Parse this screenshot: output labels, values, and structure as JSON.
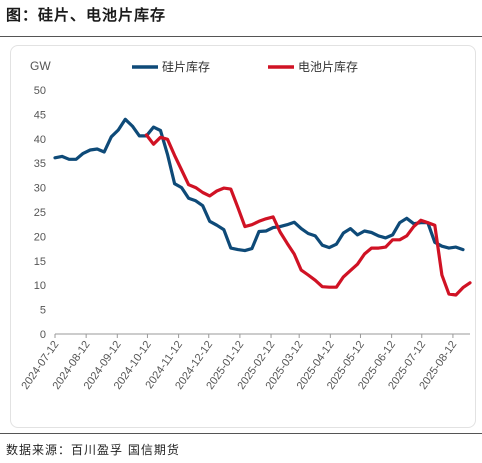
{
  "header": {
    "title": "图：硅片、电池片库存"
  },
  "footer": {
    "source": "数据来源：百川盈孚 国信期货"
  },
  "chart_data": {
    "type": "line",
    "ylabel": "GW",
    "ylim": [
      0,
      50
    ],
    "yticks": [
      0,
      5,
      10,
      15,
      20,
      25,
      30,
      35,
      40,
      45,
      50
    ],
    "x_start": "2024-07-12",
    "x_step_days": 7,
    "xticks": [
      "2024-07-12",
      "2024-08-12",
      "2024-09-12",
      "2024-10-12",
      "2024-11-12",
      "2024-12-12",
      "2025-01-12",
      "2025-02-12",
      "2025-03-12",
      "2025-04-12",
      "2025-05-12",
      "2025-06-12",
      "2025-07-12",
      "2025-08-12"
    ],
    "grid": false,
    "legend_position": "top",
    "series": [
      {
        "name": "硅片库存",
        "color": "#0e4a78",
        "values": [
          36.1,
          36.4,
          35.8,
          35.8,
          37.0,
          37.7,
          37.9,
          37.3,
          40.4,
          41.8,
          44.0,
          42.6,
          40.6,
          40.6,
          42.4,
          41.7,
          36.8,
          30.8,
          30.0,
          27.8,
          27.3,
          26.3,
          23.1,
          22.3,
          21.4,
          17.6,
          17.3,
          17.1,
          17.5,
          21.0,
          21.1,
          21.8,
          22.0,
          22.4,
          22.9,
          21.6,
          20.6,
          20.1,
          18.2,
          17.7,
          18.4,
          20.7,
          21.6,
          20.3,
          21.1,
          20.8,
          20.1,
          19.7,
          20.3,
          22.8,
          23.7,
          22.6,
          22.8,
          22.8,
          18.8,
          18.0,
          17.6,
          17.8,
          17.3
        ]
      },
      {
        "name": "电池片库存",
        "color": "#d01224",
        "values": [
          null,
          null,
          null,
          null,
          null,
          null,
          null,
          null,
          null,
          null,
          null,
          null,
          null,
          40.8,
          38.9,
          40.3,
          39.9,
          36.6,
          33.6,
          30.6,
          30.0,
          29.0,
          28.3,
          29.3,
          29.9,
          29.7,
          25.9,
          22.0,
          22.4,
          23.1,
          23.6,
          24.0,
          20.9,
          18.6,
          16.4,
          13.1,
          12.1,
          11.0,
          9.7,
          9.6,
          9.6,
          11.7,
          13.0,
          14.3,
          16.4,
          17.6,
          17.6,
          17.8,
          19.3,
          19.3,
          20.1,
          22.0,
          23.3,
          22.8,
          22.3,
          12.1,
          8.2,
          8.0,
          9.5,
          10.5
        ]
      }
    ]
  }
}
